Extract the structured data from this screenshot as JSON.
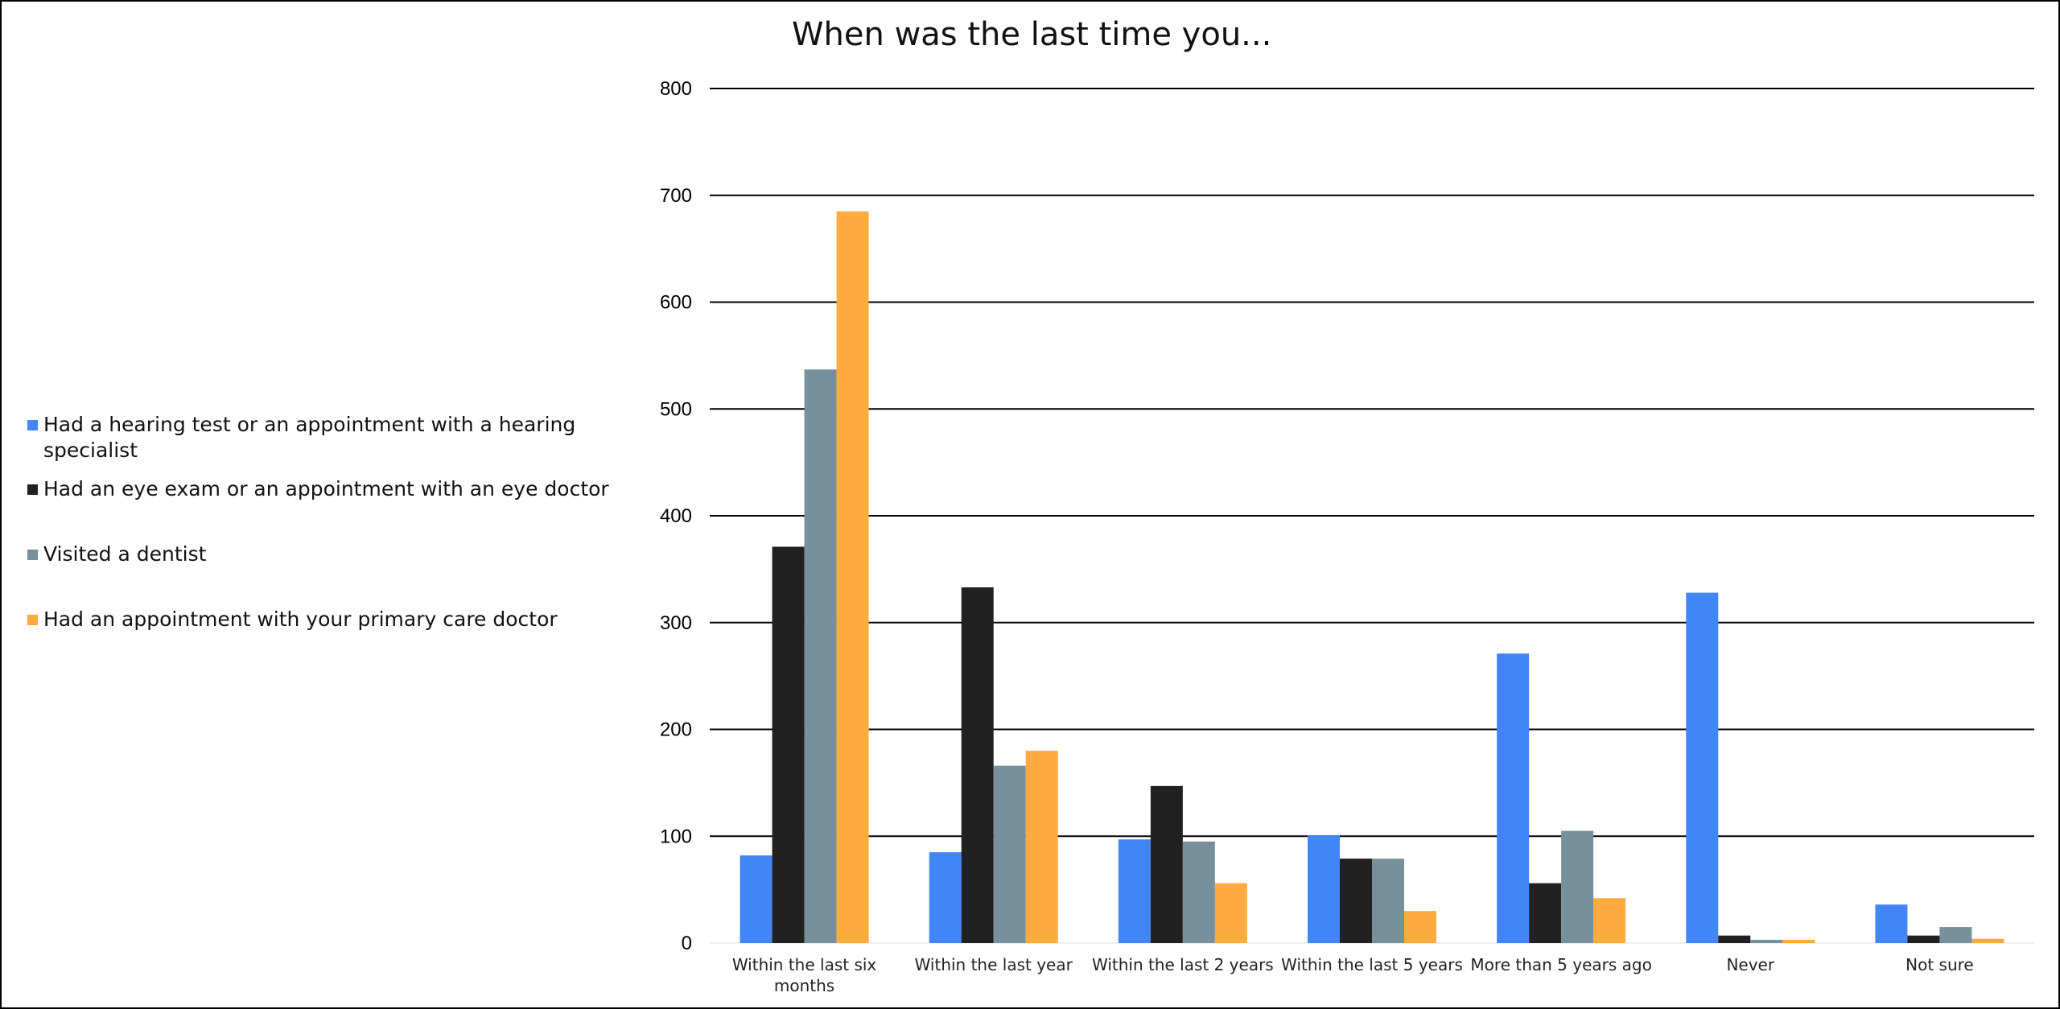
{
  "chart_data": {
    "type": "bar",
    "title": "When was the last time you...",
    "xlabel": "",
    "ylabel": "",
    "ylim": [
      0,
      800
    ],
    "y_ticks": [
      0,
      100,
      200,
      300,
      400,
      500,
      600,
      700,
      800
    ],
    "grid": true,
    "legend_position": "left",
    "categories": [
      "Within the last six months",
      "Within the last year",
      "Within the last 2 years",
      "Within the last 5 years",
      "More than 5 years ago",
      "Never",
      "Not sure"
    ],
    "series": [
      {
        "name": "Had a hearing test or an appointment with a hearing specialist",
        "color": "#4285F4",
        "values": [
          82,
          85,
          97,
          101,
          271,
          328,
          36
        ]
      },
      {
        "name": "Had an eye exam or an appointment with an eye doctor",
        "color": "#212121",
        "values": [
          371,
          333,
          147,
          79,
          56,
          7,
          7
        ]
      },
      {
        "name": "Visited a dentist",
        "color": "#78909C",
        "values": [
          537,
          166,
          95,
          79,
          105,
          3,
          15
        ]
      },
      {
        "name": "Had an appointment with your primary care doctor",
        "color": "#FFAB40",
        "values": [
          685,
          180,
          56,
          30,
          42,
          3,
          4
        ]
      }
    ]
  }
}
